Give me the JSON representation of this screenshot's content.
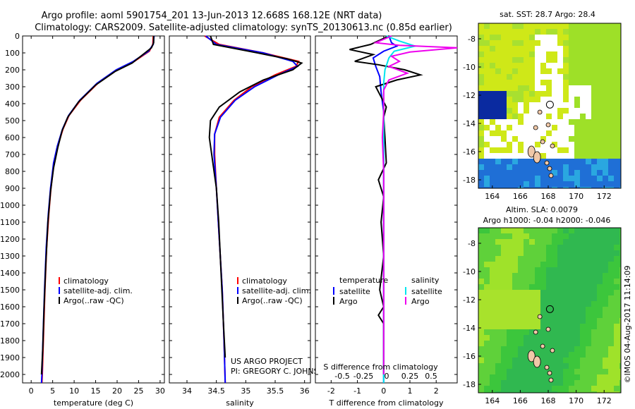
{
  "header": {
    "title_line1": "Argo profile: aoml 5901754_201 13-Jun-2013 12.668S 168.12E (NRT data)",
    "title_line2": "Climatology: CARS2009. Satellite-adjusted climatology: synTS_20130613.nc (0.85d earlier)"
  },
  "colors": {
    "climatology": "#ff0000",
    "satellite": "#0000ff",
    "argo": "#000000",
    "salinity_satellite": "#00e5ee",
    "salinity_argo": "#ee00ee"
  },
  "chart_data": [
    {
      "type": "line",
      "id": "temperature",
      "xlabel": "temperature (deg C)",
      "xlim": [
        -2,
        31
      ],
      "xticks": [
        0,
        5,
        10,
        15,
        20,
        25,
        30
      ],
      "ylim": [
        0,
        2050
      ],
      "yticks": [
        0,
        100,
        200,
        300,
        400,
        500,
        600,
        700,
        800,
        900,
        1000,
        1100,
        1200,
        1300,
        1400,
        1500,
        1600,
        1700,
        1800,
        1900,
        2000
      ],
      "legend": [
        "climatology",
        "satellite-adj. clim.",
        "Argo(..raw -QC)"
      ],
      "series": [
        {
          "name": "climatology",
          "color": "#ff0000",
          "points": [
            [
              28.4,
              0
            ],
            [
              28.3,
              50
            ],
            [
              27.5,
              90
            ],
            [
              24,
              150
            ],
            [
              20,
              200
            ],
            [
              15.5,
              280
            ],
            [
              11.5,
              380
            ],
            [
              8.8,
              470
            ],
            [
              7.4,
              550
            ],
            [
              6.2,
              650
            ],
            [
              5.3,
              750
            ],
            [
              4.6,
              900
            ],
            [
              4.1,
              1050
            ],
            [
              3.6,
              1250
            ],
            [
              3.2,
              1500
            ],
            [
              2.9,
              1750
            ],
            [
              2.6,
              2000
            ],
            [
              2.5,
              2050
            ]
          ]
        },
        {
          "name": "satellite-adj. clim.",
          "color": "#0000ff",
          "points": [
            [
              28.6,
              0
            ],
            [
              28.4,
              50
            ],
            [
              27.3,
              90
            ],
            [
              23.8,
              150
            ],
            [
              19.8,
              200
            ],
            [
              15.3,
              280
            ],
            [
              11.3,
              380
            ],
            [
              8.7,
              470
            ],
            [
              7.3,
              550
            ],
            [
              6.1,
              650
            ],
            [
              5.2,
              750
            ],
            [
              4.5,
              900
            ],
            [
              4.0,
              1050
            ],
            [
              3.5,
              1250
            ],
            [
              3.1,
              1500
            ],
            [
              2.8,
              1750
            ],
            [
              2.5,
              2000
            ],
            [
              2.4,
              2050
            ]
          ]
        },
        {
          "name": "Argo(..raw -QC)",
          "color": "#000000",
          "points": [
            [
              28.5,
              0
            ],
            [
              28.5,
              40
            ],
            [
              28,
              70
            ],
            [
              26,
              110
            ],
            [
              23.5,
              160
            ],
            [
              19.5,
              210
            ],
            [
              15,
              290
            ],
            [
              11,
              390
            ],
            [
              8.5,
              480
            ],
            [
              7.2,
              560
            ],
            [
              6.2,
              660
            ],
            [
              5.2,
              780
            ],
            [
              4.5,
              920
            ],
            [
              3.9,
              1100
            ],
            [
              3.4,
              1350
            ],
            [
              3.0,
              1600
            ],
            [
              2.7,
              1850
            ],
            [
              2.4,
              2000
            ]
          ]
        }
      ]
    },
    {
      "type": "line",
      "id": "salinity",
      "xlabel": "salinity",
      "xlim": [
        33.7,
        36.1
      ],
      "xticks": [
        34,
        34.5,
        35,
        35.5,
        36
      ],
      "xtick_labels": [
        "34",
        "34.5",
        "35",
        "35.5",
        "36"
      ],
      "legend": [
        "climatology",
        "satellite-adj. clim.",
        "Argo(..raw -QC)"
      ],
      "annotation": [
        "US ARGO PROJECT",
        "PI: GREGORY C. JOHNSON"
      ],
      "series": [
        {
          "name": "climatology",
          "color": "#ff0000",
          "points": [
            [
              34.3,
              0
            ],
            [
              34.55,
              50
            ],
            [
              35.3,
              100
            ],
            [
              35.9,
              150
            ],
            [
              35.85,
              180
            ],
            [
              35.5,
              230
            ],
            [
              35.1,
              300
            ],
            [
              34.8,
              380
            ],
            [
              34.55,
              480
            ],
            [
              34.47,
              580
            ],
            [
              34.47,
              700
            ],
            [
              34.5,
              900
            ],
            [
              34.55,
              1200
            ],
            [
              34.6,
              1500
            ],
            [
              34.63,
              1800
            ],
            [
              34.65,
              2050
            ]
          ]
        },
        {
          "name": "satellite-adj. clim.",
          "color": "#0000ff",
          "points": [
            [
              34.32,
              0
            ],
            [
              34.5,
              50
            ],
            [
              35.3,
              100
            ],
            [
              35.8,
              150
            ],
            [
              35.88,
              180
            ],
            [
              35.55,
              230
            ],
            [
              35.15,
              300
            ],
            [
              34.82,
              380
            ],
            [
              34.57,
              480
            ],
            [
              34.47,
              580
            ],
            [
              34.46,
              700
            ],
            [
              34.5,
              900
            ],
            [
              34.55,
              1200
            ],
            [
              34.6,
              1500
            ],
            [
              34.63,
              1800
            ],
            [
              34.65,
              2050
            ]
          ]
        },
        {
          "name": "Argo(..raw -QC)",
          "color": "#000000",
          "points": [
            [
              34.4,
              0
            ],
            [
              34.45,
              50
            ],
            [
              35.2,
              100
            ],
            [
              35.7,
              135
            ],
            [
              35.95,
              160
            ],
            [
              35.8,
              200
            ],
            [
              35.3,
              260
            ],
            [
              34.9,
              330
            ],
            [
              34.55,
              420
            ],
            [
              34.4,
              500
            ],
            [
              34.38,
              600
            ],
            [
              34.44,
              750
            ],
            [
              34.5,
              900
            ],
            [
              34.54,
              1100
            ],
            [
              34.58,
              1400
            ],
            [
              34.62,
              1700
            ],
            [
              34.65,
              1900
            ]
          ]
        }
      ]
    },
    {
      "type": "line",
      "id": "differences",
      "xlabel": "T difference from climatology",
      "xlim": [
        -2.6,
        2.8
      ],
      "xticks": [
        -2,
        -1,
        0,
        1,
        2
      ],
      "secondary_xlabel": "S difference from climatology",
      "secondary_xticks": [
        -0.5,
        -0.25,
        0,
        0.25,
        0.5
      ],
      "secondary_xtick_labels": [
        "-0.5",
        "-0.25",
        "0",
        "0.25",
        "0.5"
      ],
      "legend": {
        "temperature_heading": "temperature",
        "salinity_heading": "salinity",
        "satellite": "satellite",
        "argo": "Argo"
      },
      "series": [
        {
          "name": "temperature satellite",
          "color": "#0000ff",
          "points": [
            [
              0.2,
              0
            ],
            [
              0.3,
              40
            ],
            [
              0.5,
              60
            ],
            [
              0,
              90
            ],
            [
              -0.4,
              130
            ],
            [
              -0.3,
              180
            ],
            [
              -0.15,
              240
            ],
            [
              -0.1,
              330
            ],
            [
              0,
              450
            ],
            [
              0,
              650
            ],
            [
              0,
              900
            ],
            [
              0,
              1200
            ],
            [
              0,
              1600
            ],
            [
              0,
              2050
            ]
          ]
        },
        {
          "name": "temperature Argo",
          "color": "#000000",
          "points": [
            [
              0.2,
              0
            ],
            [
              -0.5,
              50
            ],
            [
              -1.3,
              80
            ],
            [
              -0.4,
              110
            ],
            [
              -1.1,
              150
            ],
            [
              -0.2,
              170
            ],
            [
              0.8,
              200
            ],
            [
              1.4,
              230
            ],
            [
              0.5,
              260
            ],
            [
              -0.3,
              300
            ],
            [
              -0.1,
              360
            ],
            [
              0.1,
              420
            ],
            [
              0,
              480
            ],
            [
              0.05,
              600
            ],
            [
              0.1,
              750
            ],
            [
              -0.2,
              850
            ],
            [
              0,
              950
            ],
            [
              -0.1,
              1100
            ],
            [
              0,
              1300
            ],
            [
              -0.15,
              1500
            ],
            [
              0,
              1600
            ],
            [
              -0.2,
              1650
            ],
            [
              0,
              1700
            ],
            [
              0,
              2000
            ]
          ]
        },
        {
          "name": "salinity satellite",
          "color": "#00e5ee",
          "points": [
            [
              0.1,
              0
            ],
            [
              0.6,
              30
            ],
            [
              1.2,
              60
            ],
            [
              0.4,
              90
            ],
            [
              0.2,
              130
            ],
            [
              0.05,
              200
            ],
            [
              0,
              280
            ],
            [
              0,
              400
            ],
            [
              0,
              700
            ],
            [
              0,
              1000
            ],
            [
              0,
              1500
            ],
            [
              0,
              2050
            ]
          ]
        },
        {
          "name": "salinity Argo",
          "color": "#ee00ee",
          "points": [
            [
              0.3,
              0
            ],
            [
              -0.3,
              40
            ],
            [
              0.6,
              55
            ],
            [
              2.8,
              70
            ],
            [
              1.0,
              95
            ],
            [
              0.3,
              120
            ],
            [
              0.6,
              150
            ],
            [
              0.2,
              180
            ],
            [
              0.9,
              220
            ],
            [
              0.2,
              260
            ],
            [
              0,
              320
            ],
            [
              0,
              450
            ],
            [
              -0.05,
              600
            ],
            [
              0,
              800
            ],
            [
              0,
              1100
            ],
            [
              0,
              1500
            ],
            [
              0,
              2000
            ]
          ]
        }
      ]
    },
    {
      "type": "heatmap",
      "id": "sst_map",
      "title": "sat. SST: 28.7 Argo: 28.4",
      "xticks": [
        164,
        166,
        168,
        170,
        172
      ],
      "yticks": [
        -8,
        -10,
        -12,
        -14,
        -16,
        -18
      ],
      "xtick_labels": [
        "164",
        "166",
        "168",
        "170",
        "172"
      ],
      "ytick_labels": [
        "-8",
        "-10",
        "-12",
        "-14",
        "-16",
        "-18"
      ],
      "xlim": [
        163,
        173.2
      ],
      "ylim": [
        -18.6,
        -6.9
      ],
      "argo_position": [
        168.12,
        -12.668
      ]
    },
    {
      "type": "heatmap",
      "id": "sla_map",
      "title_line1": "Altim. SLA: 0.0079",
      "title_line2": "Argo h1000: -0.04 h2000: -0.046",
      "xticks": [
        164,
        166,
        168,
        170,
        172
      ],
      "yticks": [
        -8,
        -10,
        -12,
        -14,
        -16,
        -18
      ],
      "xtick_labels": [
        "164",
        "166",
        "168",
        "170",
        "172"
      ],
      "ytick_labels": [
        "-8",
        "-10",
        "-12",
        "-14",
        "-16",
        "-18"
      ],
      "xlim": [
        163,
        173.2
      ],
      "ylim": [
        -18.6,
        -6.9
      ],
      "argo_position": [
        168.12,
        -12.668
      ]
    }
  ],
  "credit": "©IMOS 04-Aug-2017 11:14:09"
}
